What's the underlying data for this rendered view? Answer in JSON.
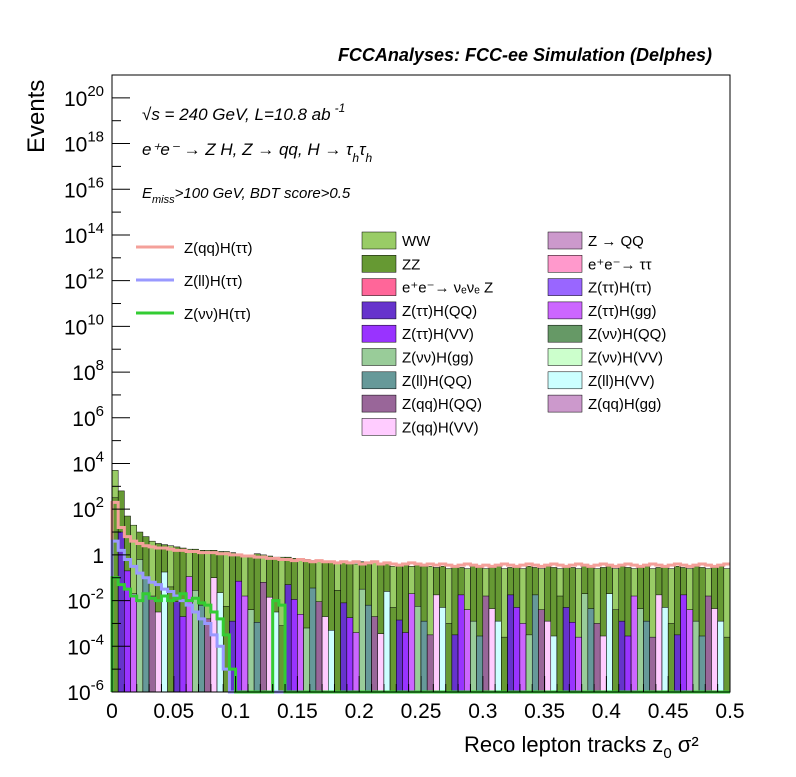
{
  "header": {
    "title": "FCCAnalyses: FCC-ee Simulation (Delphes)"
  },
  "annotations": {
    "energy": "√s = 240 GeV, L=10.8 ab",
    "energy_exp": "-1",
    "process": "e⁺e⁻ → Z H, Z → qq, H → τ",
    "process_sub1": "h",
    "process_tau2": "τ",
    "process_sub2": "h",
    "selection_E": "E",
    "selection_sub": "miss",
    "selection_rest": ">100 GeV, BDT score>0.5"
  },
  "axes": {
    "xlabel": "Reco lepton tracks z",
    "xlabel_sub": "0",
    "xlabel_tail": " σ²",
    "ylabel": "Events",
    "xticks": [
      "0",
      "0.05",
      "0.1",
      "0.15",
      "0.2",
      "0.25",
      "0.3",
      "0.35",
      "0.4",
      "0.45",
      "0.5"
    ],
    "ytick_exponents": [
      "-6",
      "-4",
      "-2",
      "0",
      "2",
      "4",
      "6",
      "8",
      "10",
      "12",
      "14",
      "16",
      "18",
      "20"
    ],
    "ytick_special": {
      "0": "1",
      "2": "10²"
    }
  },
  "legend": {
    "signals": [
      {
        "label": "Z(qq)H(ττ)",
        "color": "#f4a09a"
      },
      {
        "label": "Z(ll)H(ττ)",
        "color": "#9999ff"
      },
      {
        "label": "Z(νν)H(ττ)",
        "color": "#33cc33"
      }
    ],
    "backgrounds_col1": [
      {
        "label": "WW",
        "color": "#99cc66"
      },
      {
        "label": "ZZ",
        "color": "#669933"
      },
      {
        "label": "e⁺e⁻→ νₑνₑ Z",
        "color": "#ff6699"
      },
      {
        "label": "Z(ττ)H(QQ)",
        "color": "#6633cc"
      },
      {
        "label": "Z(ττ)H(VV)",
        "color": "#9933ff"
      },
      {
        "label": "Z(νν)H(gg)",
        "color": "#99cc99"
      },
      {
        "label": "Z(ll)H(QQ)",
        "color": "#669999"
      },
      {
        "label": "Z(qq)H(QQ)",
        "color": "#996699"
      },
      {
        "label": "Z(qq)H(VV)",
        "color": "#ffccff"
      }
    ],
    "backgrounds_col2": [
      {
        "label": "Z → QQ",
        "color": "#cc99cc"
      },
      {
        "label": "e⁺e⁻→ ττ",
        "color": "#ff99cc"
      },
      {
        "label": "Z(ττ)H(ττ)",
        "color": "#9966ff"
      },
      {
        "label": "Z(ττ)H(gg)",
        "color": "#cc66ff"
      },
      {
        "label": "Z(νν)H(QQ)",
        "color": "#669966"
      },
      {
        "label": "Z(νν)H(VV)",
        "color": "#ccffcc"
      },
      {
        "label": "Z(ll)H(VV)",
        "color": "#ccffff"
      },
      {
        "label": "Z(qq)H(gg)",
        "color": "#cc99cc"
      }
    ]
  },
  "chart_data": {
    "type": "bar",
    "title": "FCCAnalyses: FCC-ee Simulation (Delphes)",
    "xlabel": "Reco lepton tracks z0 σ²",
    "ylabel": "Events",
    "xlim": [
      0,
      0.5
    ],
    "ylim": [
      1e-06,
      1e+21
    ],
    "yscale": "log",
    "bin_width": 0.005,
    "stack_total_log10": [
      3.7,
      2.8,
      1.7,
      1.3,
      1.0,
      0.8,
      0.6,
      0.5,
      0.45,
      0.4,
      0.35,
      0.3,
      0.25,
      0.25,
      0.2,
      0.2,
      0.2,
      0.15,
      0.15,
      0.1,
      0.05,
      0.0,
      0.0,
      0.05,
      0.0,
      -0.05,
      -0.1,
      -0.1,
      -0.1,
      -0.15,
      -0.2,
      -0.2,
      -0.25,
      -0.25,
      -0.3,
      -0.3,
      -0.35,
      -0.3,
      -0.35,
      -0.4,
      -0.3,
      -0.4,
      -0.3,
      -0.45,
      -0.4,
      -0.5,
      -0.45,
      -0.4,
      -0.5,
      -0.45,
      -0.5,
      -0.5,
      -0.55,
      -0.5,
      -0.6,
      -0.5,
      -0.55,
      -0.6,
      -0.5,
      -0.55,
      -0.6,
      -0.55,
      -0.5,
      -0.6,
      -0.55,
      -0.5,
      -0.6,
      -0.5,
      -0.55,
      -0.6,
      -0.5,
      -0.55,
      -0.6,
      -0.5,
      -0.55,
      -0.6,
      -0.5,
      -0.55,
      -0.6,
      -0.55,
      -0.5,
      -0.6,
      -0.5,
      -0.55,
      -0.6,
      -0.55,
      -0.5,
      -0.6,
      -0.55,
      -0.5,
      -0.6,
      -0.5,
      -0.55,
      -0.6,
      -0.5,
      -0.55,
      -0.6,
      -0.55,
      -0.5,
      -0.6
    ],
    "series": [
      {
        "name": "Z(qq)H(ττ)",
        "color": "#f4a09a",
        "log10": [
          2.3,
          1.2,
          0.8,
          0.6,
          0.5,
          0.4,
          0.35,
          0.3,
          0.3,
          0.25,
          0.2,
          0.2,
          0.15,
          0.15,
          0.1,
          0.1,
          0.1,
          0.05,
          0.05,
          0.0,
          0.0,
          -0.05,
          -0.05,
          -0.1,
          -0.1,
          -0.15,
          -0.15,
          -0.2,
          -0.2,
          -0.25,
          -0.2,
          -0.25,
          -0.3,
          -0.25,
          -0.3,
          -0.3,
          -0.35,
          -0.3,
          -0.35,
          -0.3,
          -0.4,
          -0.35,
          -0.3,
          -0.4,
          -0.35,
          -0.4,
          -0.45,
          -0.4,
          -0.35,
          -0.4,
          -0.45,
          -0.4,
          -0.45,
          -0.4,
          -0.45,
          -0.5,
          -0.45,
          -0.4,
          -0.45,
          -0.5,
          -0.45,
          -0.5,
          -0.45,
          -0.4,
          -0.45,
          -0.5,
          -0.45,
          -0.4,
          -0.45,
          -0.5,
          -0.45,
          -0.4,
          -0.45,
          -0.5,
          -0.45,
          -0.4,
          -0.45,
          -0.5,
          -0.45,
          -0.4,
          -0.45,
          -0.5,
          -0.45,
          -0.4,
          -0.45,
          -0.5,
          -0.45,
          -0.4,
          -0.45,
          -0.5,
          -0.45,
          -0.4,
          -0.45,
          -0.5,
          -0.45,
          -0.4,
          -0.45,
          -0.5,
          -0.45,
          -0.4
        ]
      },
      {
        "name": "Z(ll)H(ττ)",
        "color": "#9999ff",
        "log10": [
          0.6,
          0.2,
          -0.2,
          -0.5,
          -0.8,
          -1.0,
          -1.2,
          -1.3,
          -1.5,
          -1.6,
          -1.8,
          -2.0,
          -2.2,
          -2.5,
          -2.8,
          -3.0,
          -3.5,
          -4.0,
          -5.0,
          -6.5,
          -6.5,
          -6.5,
          -6.5,
          -6.5,
          -6.5,
          -6.5,
          -6.5,
          -6.5,
          -6.5,
          -6.5,
          -6.5,
          -6.5,
          -6.5,
          -6.5,
          -6.5,
          -6.5,
          -6.5,
          -6.5,
          -6.5,
          -6.5,
          -6.5,
          -6.5,
          -6.5,
          -6.5,
          -6.5,
          -6.5,
          -6.5,
          -6.5,
          -6.5,
          -6.5,
          -6.5,
          -6.5,
          -6.5,
          -6.5,
          -6.5,
          -6.5,
          -6.5,
          -6.5,
          -6.5,
          -6.5,
          -6.5,
          -6.5,
          -6.5,
          -6.5,
          -6.5,
          -6.5,
          -6.5,
          -6.5,
          -6.5,
          -6.5,
          -6.5,
          -6.5,
          -6.5,
          -6.5,
          -6.5,
          -6.5,
          -6.5,
          -6.5,
          -6.5,
          -6.5,
          -6.5,
          -6.5,
          -6.5,
          -6.5,
          -6.5,
          -6.5,
          -6.5,
          -6.5,
          -6.5,
          -6.5,
          -6.5,
          -6.5,
          -6.5,
          -6.5,
          -6.5,
          -6.5,
          -6.5,
          -6.5,
          -6.5,
          -6.5
        ]
      },
      {
        "name": "Z(νν)H(ττ)",
        "color": "#33cc33",
        "log10": [
          -1.0,
          -1.3,
          -1.5,
          -1.8,
          -2.0,
          -1.7,
          -1.9,
          -2.0,
          -1.8,
          -2.0,
          -1.9,
          -1.7,
          -2.0,
          -1.9,
          -2.1,
          -2.2,
          -2.5,
          -2.8,
          -3.5,
          -5.0,
          -6.5,
          -6.5,
          -6.5,
          -6.5,
          -6.5,
          -6.5,
          -2.0,
          -2.2,
          -6.5,
          -6.5,
          -6.5,
          -6.5,
          -6.5,
          -6.5,
          -6.5,
          -6.5,
          -6.5,
          -6.5,
          -6.5,
          -6.5,
          -6.5,
          -6.5,
          -6.5,
          -6.5,
          -6.5,
          -6.5,
          -6.5,
          -6.5,
          -6.5,
          -6.5,
          -6.5,
          -6.5,
          -6.5,
          -6.5,
          -6.5,
          -6.5,
          -6.5,
          -6.5,
          -6.5,
          -6.5,
          -6.5,
          -6.5,
          -6.5,
          -6.5,
          -6.5,
          -6.5,
          -6.5,
          -6.5,
          -6.5,
          -6.5,
          -6.5,
          -6.5,
          -6.5,
          -6.5,
          -6.5,
          -6.5,
          -6.5,
          -6.5,
          -6.5,
          -6.5,
          -6.5,
          -6.5,
          -6.5,
          -6.5,
          -6.5,
          -6.5,
          -6.5,
          -6.5,
          -6.5,
          -6.5,
          -6.5,
          -6.5,
          -6.5,
          -6.5,
          -6.5,
          -6.5,
          -6.5,
          -6.5,
          -6.5,
          -6.5
        ]
      }
    ],
    "grid": false,
    "legend_position": "top-right"
  }
}
